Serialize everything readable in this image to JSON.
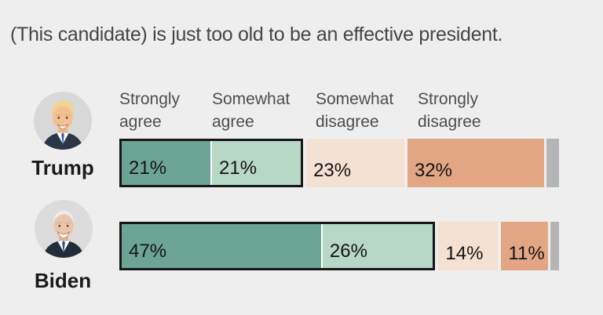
{
  "title": "(This candidate) is just too old to be an effective president.",
  "headers": {
    "items": [
      {
        "line1": "Strongly",
        "line2": "agree"
      },
      {
        "line1": "Somewhat",
        "line2": "agree"
      },
      {
        "line1": "Somewhat",
        "line2": "disagree"
      },
      {
        "line1": "Strongly",
        "line2": "disagree"
      }
    ]
  },
  "chart_data": {
    "type": "bar",
    "orientation": "horizontal-stacked",
    "title": "(This candidate) is just too old to be an effective president.",
    "categories": [
      "Strongly agree",
      "Somewhat agree",
      "Somewhat disagree",
      "Strongly disagree"
    ],
    "series": [
      {
        "name": "Trump",
        "values": [
          21,
          21,
          23,
          32
        ],
        "labels": [
          "21%",
          "21%",
          "23%",
          "32%"
        ],
        "unlabeled_remainder": 3
      },
      {
        "name": "Biden",
        "values": [
          47,
          26,
          14,
          11
        ],
        "labels": [
          "47%",
          "26%",
          "14%",
          "11%"
        ],
        "unlabeled_remainder": 2
      }
    ],
    "xlim": [
      0,
      100
    ],
    "legend_position": "top",
    "grid": false,
    "colors": {
      "strongly_agree": "#6ca595",
      "somewhat_agree": "#b7d7c7",
      "somewhat_disagree": "#f4e1d2",
      "strongly_disagree": "#e3a684",
      "no_answer": "#b5b5b5",
      "agree_outline": "#171717",
      "background": "#eeeeee"
    }
  }
}
